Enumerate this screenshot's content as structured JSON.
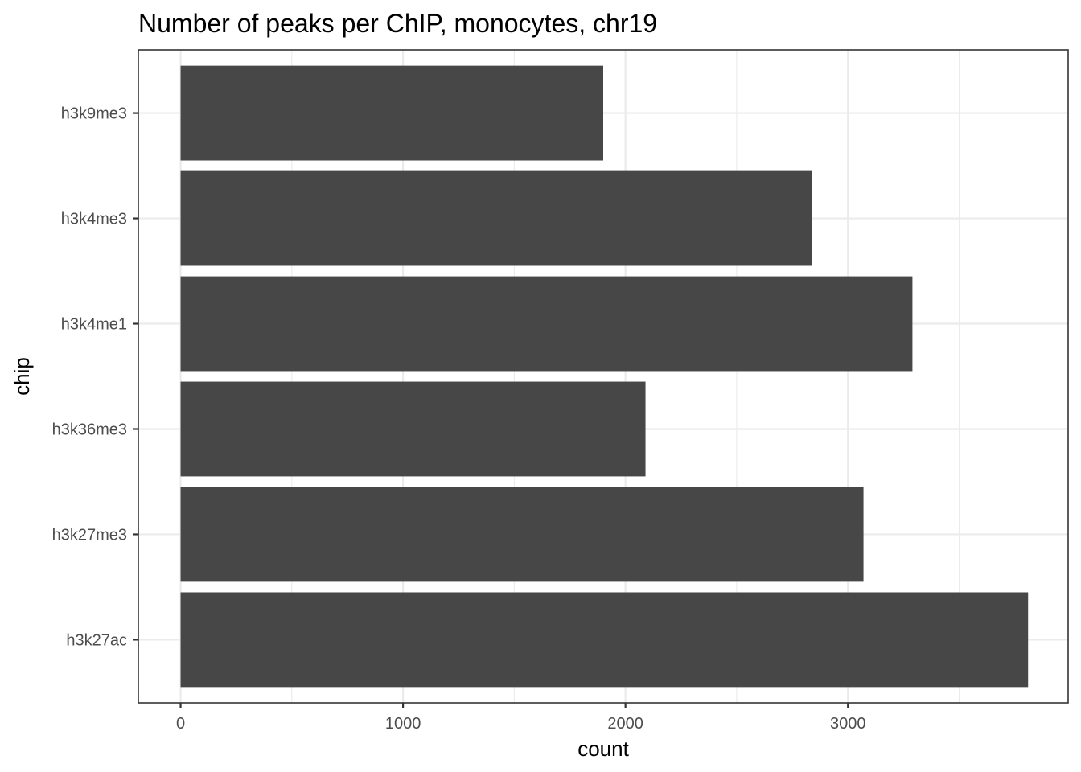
{
  "chart_data": {
    "type": "bar",
    "orientation": "horizontal",
    "title": "Number of peaks per ChIP, monocytes, chr19",
    "xlabel": "count",
    "ylabel": "chip",
    "categories": [
      "h3k27ac",
      "h3k27me3",
      "h3k36me3",
      "h3k4me1",
      "h3k4me3",
      "h3k9me3"
    ],
    "values": [
      3810,
      3070,
      2090,
      3290,
      2840,
      1900
    ],
    "xlim": [
      -190,
      3990
    ],
    "xticks": [
      0,
      1000,
      2000,
      3000
    ],
    "xtick_labels": [
      "0",
      "1000",
      "2000",
      "3000"
    ],
    "grid": true,
    "bar_color": "#474747"
  }
}
